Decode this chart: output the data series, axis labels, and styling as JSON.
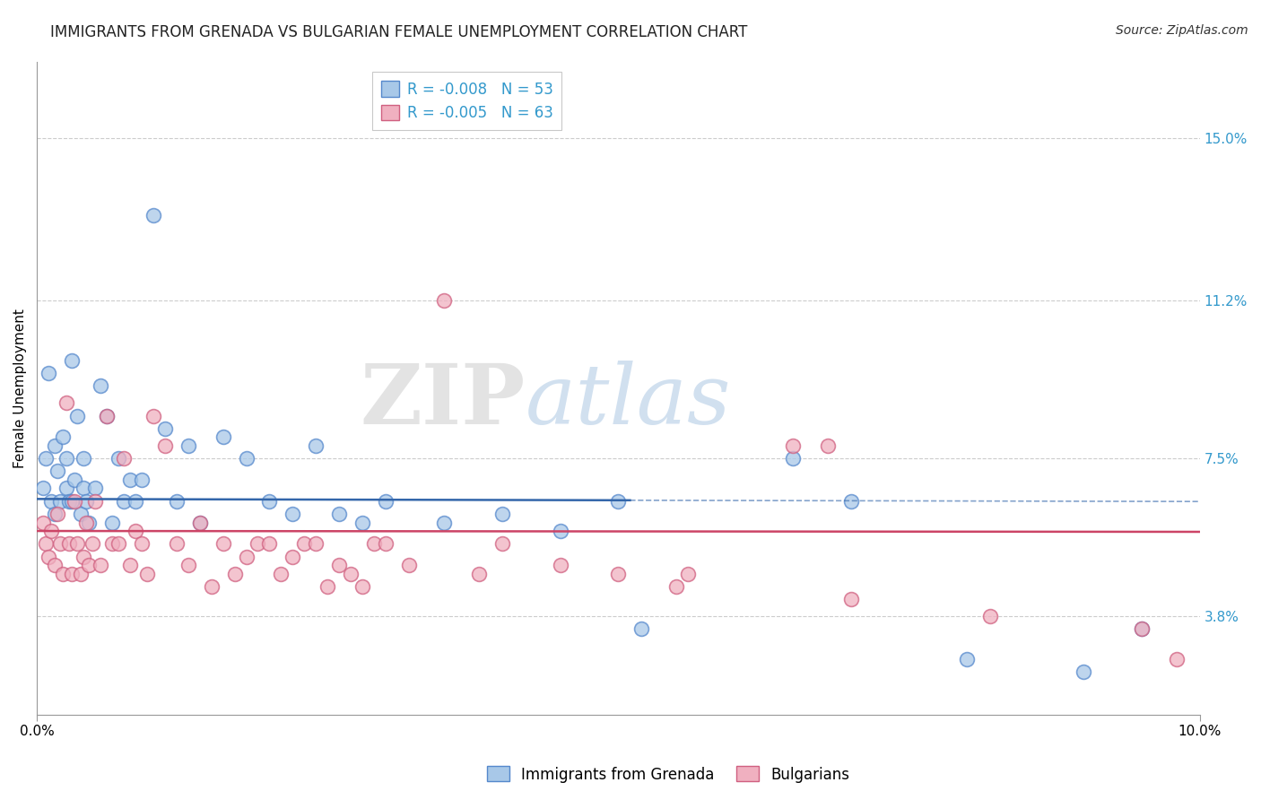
{
  "title": "IMMIGRANTS FROM GRENADA VS BULGARIAN FEMALE UNEMPLOYMENT CORRELATION CHART",
  "source": "Source: ZipAtlas.com",
  "ylabel_label": "Female Unemployment",
  "y_tick_values": [
    3.8,
    7.5,
    11.2,
    15.0
  ],
  "x_lim": [
    0.0,
    10.0
  ],
  "y_lim": [
    1.5,
    16.8
  ],
  "legend_label1": "R = -0.008   N = 53",
  "legend_label2": "R = -0.005   N = 63",
  "legend_series1": "Immigrants from Grenada",
  "legend_series2": "Bulgarians",
  "color_blue_fill": "#a8c8e8",
  "color_blue_edge": "#5588cc",
  "color_pink_fill": "#f0b0c0",
  "color_pink_edge": "#d06080",
  "color_blue_line": "#3366aa",
  "color_pink_line": "#cc4466",
  "watermark_zip": "ZIP",
  "watermark_atlas": "atlas",
  "blue_trend_x0": 0.0,
  "blue_trend_x_solid_end": 5.1,
  "blue_trend_x1": 10.0,
  "blue_trend_y_intercept": 6.55,
  "blue_trend_slope": -0.006,
  "pink_trend_y_intercept": 5.8,
  "pink_trend_slope": -0.002,
  "blue_x": [
    0.05,
    0.08,
    0.1,
    0.12,
    0.15,
    0.15,
    0.18,
    0.2,
    0.22,
    0.25,
    0.25,
    0.28,
    0.3,
    0.3,
    0.32,
    0.35,
    0.38,
    0.4,
    0.4,
    0.42,
    0.45,
    0.5,
    0.55,
    0.6,
    0.65,
    0.7,
    0.75,
    0.8,
    0.85,
    0.9,
    1.0,
    1.1,
    1.2,
    1.3,
    1.4,
    1.6,
    1.8,
    2.0,
    2.2,
    2.4,
    2.6,
    2.8,
    3.0,
    3.5,
    4.0,
    4.5,
    5.0,
    5.2,
    6.5,
    7.0,
    8.0,
    9.0,
    9.5
  ],
  "blue_y": [
    6.8,
    7.5,
    9.5,
    6.5,
    7.8,
    6.2,
    7.2,
    6.5,
    8.0,
    6.8,
    7.5,
    6.5,
    9.8,
    6.5,
    7.0,
    8.5,
    6.2,
    7.5,
    6.8,
    6.5,
    6.0,
    6.8,
    9.2,
    8.5,
    6.0,
    7.5,
    6.5,
    7.0,
    6.5,
    7.0,
    13.2,
    8.2,
    6.5,
    7.8,
    6.0,
    8.0,
    7.5,
    6.5,
    6.2,
    7.8,
    6.2,
    6.0,
    6.5,
    6.0,
    6.2,
    5.8,
    6.5,
    3.5,
    7.5,
    6.5,
    2.8,
    2.5,
    3.5
  ],
  "pink_x": [
    0.05,
    0.08,
    0.1,
    0.12,
    0.15,
    0.18,
    0.2,
    0.22,
    0.25,
    0.28,
    0.3,
    0.32,
    0.35,
    0.38,
    0.4,
    0.42,
    0.45,
    0.48,
    0.5,
    0.55,
    0.6,
    0.65,
    0.7,
    0.75,
    0.8,
    0.85,
    0.9,
    0.95,
    1.0,
    1.1,
    1.2,
    1.3,
    1.4,
    1.5,
    1.6,
    1.7,
    1.8,
    1.9,
    2.0,
    2.1,
    2.2,
    2.3,
    2.4,
    2.5,
    2.6,
    2.7,
    2.8,
    2.9,
    3.0,
    3.2,
    3.5,
    3.8,
    4.0,
    4.5,
    5.0,
    5.5,
    5.6,
    6.5,
    6.8,
    7.0,
    8.2,
    9.5,
    9.8
  ],
  "pink_y": [
    6.0,
    5.5,
    5.2,
    5.8,
    5.0,
    6.2,
    5.5,
    4.8,
    8.8,
    5.5,
    4.8,
    6.5,
    5.5,
    4.8,
    5.2,
    6.0,
    5.0,
    5.5,
    6.5,
    5.0,
    8.5,
    5.5,
    5.5,
    7.5,
    5.0,
    5.8,
    5.5,
    4.8,
    8.5,
    7.8,
    5.5,
    5.0,
    6.0,
    4.5,
    5.5,
    4.8,
    5.2,
    5.5,
    5.5,
    4.8,
    5.2,
    5.5,
    5.5,
    4.5,
    5.0,
    4.8,
    4.5,
    5.5,
    5.5,
    5.0,
    11.2,
    4.8,
    5.5,
    5.0,
    4.8,
    4.5,
    4.8,
    7.8,
    7.8,
    4.2,
    3.8,
    3.5,
    2.8
  ]
}
